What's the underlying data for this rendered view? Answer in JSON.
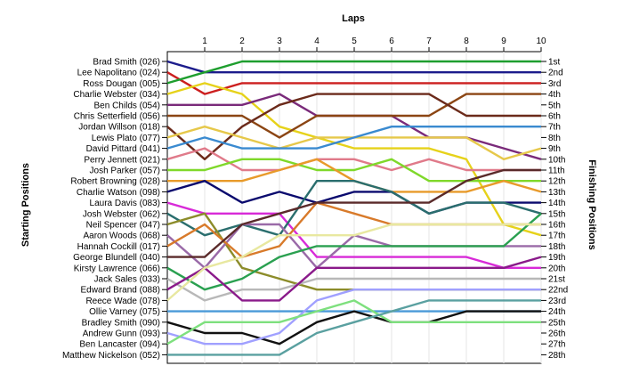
{
  "chart_data": {
    "type": "line",
    "title": "Laps",
    "xlabel": "Laps",
    "ylabel_left": "Starting Positions",
    "ylabel_right": "Finishing Positions",
    "x": [
      0,
      1,
      2,
      3,
      4,
      5,
      6,
      7,
      8,
      9,
      10
    ],
    "x_tick_labels": [
      "1",
      "2",
      "3",
      "4",
      "5",
      "6",
      "7",
      "8",
      "9",
      "10"
    ],
    "position_range": [
      1,
      28
    ],
    "finishing_labels": [
      "1st",
      "2nd",
      "3rd",
      "4th",
      "5th",
      "6th",
      "7th",
      "8th",
      "9th",
      "10th",
      "11th",
      "12th",
      "13th",
      "14th",
      "15th",
      "16th",
      "17th",
      "18th",
      "19th",
      "20th",
      "21st",
      "22nd",
      "23rd",
      "24th",
      "25th",
      "26th",
      "27th",
      "28th"
    ],
    "series": [
      {
        "name": "Brad Smith (026)",
        "color": "#1c1c8c",
        "positions": [
          1,
          2,
          2,
          2,
          2,
          2,
          2,
          2,
          2,
          2,
          2
        ]
      },
      {
        "name": "Lee Napolitano (024)",
        "color": "#cc1f1f",
        "positions": [
          2,
          4,
          3,
          3,
          3,
          3,
          3,
          3,
          3,
          3,
          3
        ]
      },
      {
        "name": "Ross Dougan (005)",
        "color": "#1e9e2e",
        "positions": [
          3,
          2,
          1,
          1,
          1,
          1,
          1,
          1,
          1,
          1,
          1
        ]
      },
      {
        "name": "Charlie Webster (034)",
        "color": "#e6d21a",
        "positions": [
          4,
          3,
          4,
          7,
          8,
          9,
          9,
          9,
          10,
          16,
          17
        ]
      },
      {
        "name": "Ben Childs (054)",
        "color": "#7a2a7a",
        "positions": [
          5,
          5,
          5,
          4,
          6,
          6,
          6,
          8,
          8,
          9,
          10
        ]
      },
      {
        "name": "Chris Setterfield (056)",
        "color": "#8b4513",
        "positions": [
          6,
          6,
          6,
          8,
          6,
          6,
          6,
          6,
          4,
          4,
          4
        ]
      },
      {
        "name": "Jordan Willson (018)",
        "color": "#6b2a1a",
        "positions": [
          7,
          10,
          7,
          5,
          4,
          4,
          4,
          4,
          6,
          6,
          6
        ]
      },
      {
        "name": "Lewis Plato (077)",
        "color": "#e6c84a",
        "positions": [
          8,
          7,
          8,
          9,
          8,
          8,
          8,
          8,
          8,
          10,
          9
        ]
      },
      {
        "name": "David Pittard (041)",
        "color": "#3a8ad0",
        "positions": [
          9,
          8,
          9,
          9,
          9,
          8,
          7,
          7,
          7,
          7,
          7
        ]
      },
      {
        "name": "Perry Jennett (021)",
        "color": "#e07a8a",
        "positions": [
          10,
          9,
          11,
          11,
          10,
          10,
          11,
          10,
          11,
          11,
          11
        ]
      },
      {
        "name": "Josh Parker (057)",
        "color": "#7fd82a",
        "positions": [
          11,
          11,
          10,
          10,
          11,
          11,
          10,
          12,
          12,
          12,
          12
        ]
      },
      {
        "name": "Robert Browning (028)",
        "color": "#e89a2a",
        "positions": [
          12,
          12,
          12,
          11,
          10,
          12,
          13,
          13,
          13,
          12,
          13
        ]
      },
      {
        "name": "Charlie Watson (098)",
        "color": "#0a0a6e",
        "positions": [
          13,
          12,
          14,
          13,
          14,
          13,
          13,
          15,
          14,
          14,
          14
        ]
      },
      {
        "name": "Laura Davis (083)",
        "color": "#d82ad8",
        "positions": [
          14,
          15,
          15,
          15,
          19,
          19,
          19,
          19,
          19,
          20,
          20
        ]
      },
      {
        "name": "Josh Webster (062)",
        "color": "#2a6e6e",
        "positions": [
          15,
          17,
          16,
          17,
          12,
          12,
          13,
          15,
          14,
          14,
          15
        ]
      },
      {
        "name": "Neil Spencer (047)",
        "color": "#8c8c2a",
        "positions": [
          16,
          15,
          20,
          21,
          22,
          22,
          22,
          22,
          22,
          22,
          22
        ]
      },
      {
        "name": "Aaron Woods (068)",
        "color": "#9a6aa8",
        "positions": [
          17,
          20,
          16,
          16,
          20,
          17,
          18,
          18,
          18,
          18,
          18
        ]
      },
      {
        "name": "Hannah Cockill (017)",
        "color": "#d87a2a",
        "positions": [
          18,
          16,
          19,
          18,
          14,
          15,
          16,
          16,
          16,
          16,
          16
        ]
      },
      {
        "name": "George Blundell (040)",
        "color": "#5a2a2a",
        "positions": [
          19,
          19,
          16,
          15,
          14,
          14,
          14,
          14,
          12,
          11,
          11
        ]
      },
      {
        "name": "Kirsty Lawrence (066)",
        "color": "#2aa050",
        "positions": [
          20,
          22,
          21,
          19,
          18,
          18,
          18,
          18,
          18,
          18,
          15
        ]
      },
      {
        "name": "Jack Sales (033)",
        "color": "#b8b8b8",
        "positions": [
          21,
          23,
          22,
          22,
          21,
          21,
          21,
          21,
          21,
          21,
          21
        ]
      },
      {
        "name": "Edward Brand (088)",
        "color": "#8a1a8a",
        "positions": [
          22,
          20,
          23,
          23,
          20,
          20,
          20,
          20,
          20,
          20,
          19
        ]
      },
      {
        "name": "Reece Wade (078)",
        "color": "#e8e8a0",
        "positions": [
          23,
          20,
          19,
          17,
          17,
          17,
          16,
          16,
          16,
          16,
          16
        ]
      },
      {
        "name": "Ollie Varney (075)",
        "color": "#4a9ad8",
        "positions": [
          24,
          24,
          24,
          24,
          24,
          24,
          24,
          24,
          24,
          24,
          24
        ]
      },
      {
        "name": "Bradley Smith (090)",
        "color": "#111111",
        "positions": [
          25,
          26,
          26,
          27,
          25,
          24,
          25,
          25,
          24,
          24,
          24
        ]
      },
      {
        "name": "Andrew Gunn (093)",
        "color": "#a0a0ff",
        "positions": [
          26,
          27,
          27,
          26,
          23,
          22,
          22,
          22,
          22,
          22,
          22
        ]
      },
      {
        "name": "Ben Lancaster (094)",
        "color": "#7ee07e",
        "positions": [
          27,
          25,
          25,
          25,
          24,
          23,
          25,
          25,
          25,
          25,
          25
        ]
      },
      {
        "name": "Matthew Nickelson (052)",
        "color": "#5aa0a0",
        "positions": [
          28,
          28,
          28,
          28,
          26,
          25,
          24,
          23,
          23,
          23,
          23
        ]
      }
    ]
  }
}
